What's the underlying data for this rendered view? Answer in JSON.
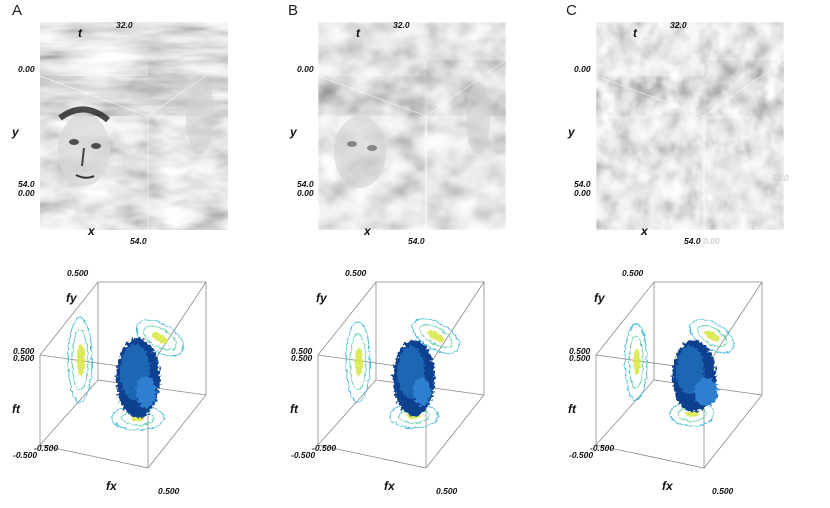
{
  "panels": [
    {
      "letter": "A",
      "cube": {
        "t_label": "t",
        "y_label": "y",
        "x_label": "x",
        "t_max": "32.0",
        "origin_top": "0.00",
        "y_max": "54.0",
        "origin_bottom": "0.00",
        "x_max": "54.0"
      },
      "spectrum": {
        "fy_label": "fy",
        "ft_label": "ft",
        "fx_label": "fx",
        "fy_top": "0.500",
        "ft_upper": "0.500",
        "ft_upper2": "0.500",
        "ft_lower": "-0.500",
        "ft_lower2": "-0.500",
        "fx_right": "0.500"
      }
    },
    {
      "letter": "B",
      "cube": {
        "t_label": "t",
        "y_label": "y",
        "x_label": "x",
        "t_max": "32.0",
        "origin_top": "0.00",
        "y_max": "54.0",
        "origin_bottom": "0.00",
        "x_max": "54.0"
      },
      "spectrum": {
        "fy_label": "fy",
        "ft_label": "ft",
        "fx_label": "fx",
        "fy_top": "0.500",
        "ft_upper": "0.500",
        "ft_upper2": "0.500",
        "ft_lower": "-0.500",
        "ft_lower2": "-0.500",
        "fx_right": "0.500"
      }
    },
    {
      "letter": "C",
      "cube": {
        "t_label": "t",
        "y_label": "y",
        "x_label": "x",
        "t_max": "32.0",
        "origin_top": "0.00",
        "y_max": "54.0",
        "origin_bottom": "0.00",
        "x_max": "54.0",
        "t_max_back": "32.0",
        "t_label_back": "t",
        "origin_back": "0.00"
      },
      "spectrum": {
        "fy_label": "fy",
        "ft_label": "ft",
        "fx_label": "fx",
        "fy_top": "0.500",
        "ft_upper": "0.500",
        "ft_upper2": "0.500",
        "ft_lower": "-0.500",
        "ft_lower2": "-0.500",
        "fx_right": "0.500"
      }
    }
  ],
  "colors": {
    "wireframe": "#8a8a8a",
    "contour_outer": "#3fb9d8",
    "contour_mid": "#5fd0a8",
    "contour_inner": "#d8e84a",
    "blob_dark": "#0e3f8f",
    "blob_mid": "#1f66b3",
    "blob_light": "#2f7fd0"
  }
}
